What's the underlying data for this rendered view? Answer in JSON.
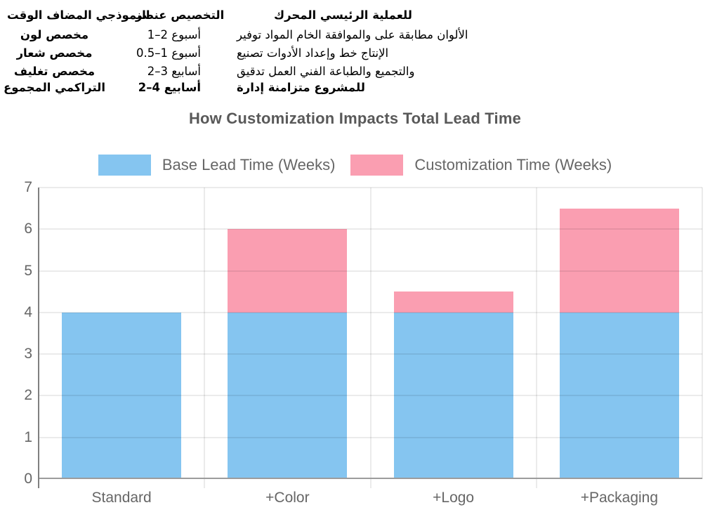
{
  "info_table": {
    "header_time": "النموذجي المضاف الوقت",
    "header_element": "التخصيص عنصر",
    "header_driver": "للعملية الرئيسي المحرك",
    "rows": [
      {
        "element": "مخصص لون",
        "time": "أسبوع 2–1",
        "driver": "الألوان مطابقة على والموافقة الخام المواد توفير",
        "bold": false
      },
      {
        "element": "مخصص شعار",
        "time": "أسبوع 1–0.5",
        "driver": "الإنتاج خط وإعداد الأدوات تصنيع",
        "bold": false
      },
      {
        "element": "مخصص تغليف",
        "time": "أسابيع 3–2",
        "driver": "والتجميع والطباعة الفني العمل تدقيق",
        "bold": false
      },
      {
        "element": "التراكمي المجموع",
        "time": "أسابيع 4–2",
        "driver": "للمشروع متزامنة إدارة",
        "bold": true
      }
    ]
  },
  "chart_data": {
    "type": "bar",
    "stacked": true,
    "title": "How Customization Impacts Total Lead Time",
    "categories": [
      "Standard",
      "+Color",
      "+Logo",
      "+Packaging"
    ],
    "series": [
      {
        "name": "Base Lead Time (Weeks)",
        "color": "#85C5F0",
        "values": [
          4,
          4,
          4,
          4
        ]
      },
      {
        "name": "Customization Time (Weeks)",
        "color": "#FA9EB1",
        "values": [
          0,
          2,
          0.5,
          2.5
        ]
      }
    ],
    "totals": [
      4,
      6,
      4.5,
      6.5
    ],
    "ylim": [
      0,
      7
    ],
    "ytick_step": 1,
    "grid": true,
    "legend_position": "top",
    "colors": {
      "title_text": "#595959",
      "axis_text": "#666666",
      "gridline": "rgba(0,0,0,0.08)",
      "left_spine": "#808080",
      "bottom_axis": "#9c9c9c"
    }
  }
}
